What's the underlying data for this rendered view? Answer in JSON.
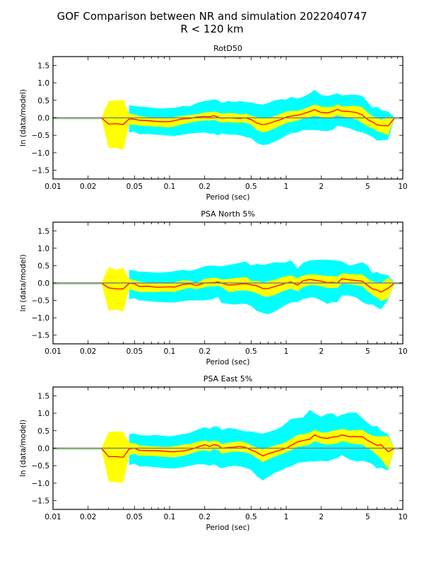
{
  "figure": {
    "title_line1": "GOF Comparison between NR and simulation 2022040747",
    "title_line2": "R < 120 km"
  },
  "colors": {
    "mean_line": "#ff0000",
    "inner_band": "#ffff00",
    "outer_band": "#00ffff",
    "zero_line": "#808080",
    "flat_band": "#90ee90"
  },
  "chart_data": [
    {
      "type": "area",
      "title": "RotD50",
      "xlabel": "Period (sec)",
      "ylabel": "ln (data/model)",
      "xscale": "log",
      "xlim": [
        0.01,
        10
      ],
      "ylim": [
        -1.75,
        1.75
      ],
      "xticks": [
        "0.01",
        "0.02",
        "0.05",
        "0.1",
        "0.2",
        "0.5",
        "1",
        "2",
        "5",
        "10"
      ],
      "yticks": [
        "1.5",
        "1.0",
        "0.5",
        "0.0",
        "−0.5",
        "−1.0",
        "−1.5"
      ],
      "grid": false,
      "period": [
        0.01,
        0.026,
        0.03,
        0.035,
        0.04,
        0.045,
        0.05,
        0.055,
        0.065,
        0.075,
        0.085,
        0.1,
        0.11,
        0.13,
        0.15,
        0.17,
        0.2,
        0.22,
        0.24,
        0.26,
        0.28,
        0.32,
        0.36,
        0.4,
        0.45,
        0.5,
        0.56,
        0.63,
        0.7,
        0.8,
        0.9,
        1.0,
        1.1,
        1.25,
        1.4,
        1.6,
        1.75,
        2.0,
        2.25,
        2.5,
        2.75,
        3.0,
        3.5,
        4.0,
        4.5,
        5.0,
        5.5,
        6.0,
        6.5,
        7.5,
        8.5,
        10.0
      ],
      "mean": [
        0.0,
        0.0,
        -0.18,
        -0.17,
        -0.19,
        -0.03,
        -0.04,
        -0.07,
        -0.08,
        -0.1,
        -0.11,
        -0.11,
        -0.08,
        -0.03,
        -0.02,
        0.02,
        0.04,
        0.03,
        0.06,
        0.02,
        -0.01,
        0.0,
        -0.01,
        -0.02,
        0.0,
        -0.05,
        -0.15,
        -0.2,
        -0.17,
        -0.1,
        -0.05,
        0.02,
        0.05,
        0.07,
        0.12,
        0.18,
        0.23,
        0.15,
        0.14,
        0.18,
        0.24,
        0.19,
        0.18,
        0.15,
        0.08,
        -0.05,
        -0.12,
        -0.2,
        -0.22,
        -0.23,
        0.0,
        0.0
      ],
      "inner_upper": [
        0.0,
        0.0,
        0.48,
        0.49,
        0.52,
        0.12,
        0.1,
        0.05,
        0.02,
        0.01,
        0.0,
        0.0,
        0.02,
        0.06,
        0.08,
        0.1,
        0.15,
        0.16,
        0.18,
        0.15,
        0.12,
        0.14,
        0.13,
        0.1,
        0.12,
        0.06,
        0.02,
        -0.02,
        0.0,
        0.05,
        0.12,
        0.18,
        0.2,
        0.2,
        0.25,
        0.32,
        0.38,
        0.32,
        0.3,
        0.32,
        0.38,
        0.33,
        0.34,
        0.34,
        0.3,
        0.15,
        0.05,
        0.0,
        -0.05,
        0.0,
        0.0,
        0.0
      ],
      "inner_lower": [
        0.0,
        0.0,
        -0.86,
        -0.86,
        -0.92,
        -0.2,
        -0.2,
        -0.22,
        -0.24,
        -0.25,
        -0.26,
        -0.27,
        -0.25,
        -0.18,
        -0.14,
        -0.1,
        -0.08,
        -0.08,
        -0.06,
        -0.1,
        -0.14,
        -0.12,
        -0.14,
        -0.14,
        -0.14,
        -0.2,
        -0.35,
        -0.42,
        -0.38,
        -0.3,
        -0.22,
        -0.15,
        -0.12,
        -0.08,
        -0.02,
        0.02,
        0.06,
        0.02,
        0.0,
        0.02,
        0.08,
        0.04,
        0.0,
        -0.05,
        -0.15,
        -0.25,
        -0.3,
        -0.38,
        -0.42,
        -0.5,
        0.0,
        0.0
      ],
      "outer_upper": [
        null,
        null,
        null,
        null,
        null,
        0.36,
        0.34,
        0.32,
        0.3,
        0.28,
        0.26,
        0.28,
        0.28,
        0.34,
        0.33,
        0.42,
        0.48,
        0.5,
        0.53,
        0.5,
        0.42,
        0.48,
        0.45,
        0.48,
        0.45,
        0.44,
        0.4,
        0.38,
        0.42,
        0.5,
        0.53,
        0.52,
        0.6,
        0.55,
        0.6,
        0.7,
        0.8,
        0.65,
        0.62,
        0.66,
        0.7,
        0.64,
        0.66,
        0.66,
        0.62,
        0.45,
        0.28,
        0.32,
        0.22,
        0.18,
        0.0,
        0.0
      ],
      "outer_lower": [
        null,
        null,
        null,
        null,
        null,
        -0.42,
        -0.4,
        -0.47,
        -0.46,
        -0.48,
        -0.49,
        -0.51,
        -0.52,
        -0.48,
        -0.45,
        -0.43,
        -0.42,
        -0.45,
        -0.45,
        -0.5,
        -0.45,
        -0.48,
        -0.48,
        -0.5,
        -0.55,
        -0.58,
        -0.72,
        -0.78,
        -0.76,
        -0.68,
        -0.6,
        -0.5,
        -0.44,
        -0.42,
        -0.35,
        -0.35,
        -0.35,
        -0.37,
        -0.38,
        -0.35,
        -0.22,
        -0.25,
        -0.3,
        -0.38,
        -0.42,
        -0.48,
        -0.55,
        -0.65,
        -0.65,
        -0.62,
        0.0,
        0.0
      ]
    },
    {
      "type": "area",
      "title": "PSA North 5%",
      "xlabel": "Period (sec)",
      "ylabel": "ln (data/model)",
      "xscale": "log",
      "xlim": [
        0.01,
        10
      ],
      "ylim": [
        -1.75,
        1.75
      ],
      "xticks": [
        "0.01",
        "0.02",
        "0.05",
        "0.1",
        "0.2",
        "0.5",
        "1",
        "2",
        "5",
        "10"
      ],
      "yticks": [
        "1.5",
        "1.0",
        "0.5",
        "0.0",
        "−0.5",
        "−1.0",
        "−1.5"
      ],
      "grid": false,
      "period": [
        0.01,
        0.026,
        0.03,
        0.035,
        0.04,
        0.045,
        0.05,
        0.055,
        0.065,
        0.075,
        0.085,
        0.1,
        0.11,
        0.13,
        0.15,
        0.17,
        0.2,
        0.22,
        0.24,
        0.26,
        0.28,
        0.32,
        0.36,
        0.4,
        0.45,
        0.5,
        0.56,
        0.63,
        0.7,
        0.8,
        0.9,
        1.0,
        1.1,
        1.25,
        1.4,
        1.6,
        1.75,
        2.0,
        2.25,
        2.5,
        2.75,
        3.0,
        3.5,
        4.0,
        4.5,
        5.0,
        5.5,
        6.0,
        6.5,
        7.5,
        8.5,
        10.0
      ],
      "mean": [
        0.0,
        0.0,
        -0.14,
        -0.17,
        -0.17,
        -0.01,
        -0.02,
        -0.1,
        -0.09,
        -0.12,
        -0.12,
        -0.11,
        -0.12,
        -0.04,
        -0.02,
        -0.07,
        0.0,
        0.01,
        0.01,
        0.03,
        0.0,
        -0.06,
        -0.05,
        -0.03,
        -0.02,
        -0.05,
        -0.08,
        -0.16,
        -0.16,
        -0.1,
        -0.05,
        0.0,
        0.03,
        -0.06,
        0.07,
        0.1,
        0.08,
        0.05,
        0.01,
        0.02,
        0.0,
        0.12,
        0.09,
        0.07,
        0.05,
        -0.07,
        -0.17,
        -0.2,
        -0.26,
        -0.15,
        0.0,
        0.0
      ],
      "inner_upper": [
        0.0,
        0.0,
        0.46,
        0.38,
        0.44,
        0.12,
        0.08,
        0.04,
        0.01,
        0.0,
        0.0,
        0.0,
        0.02,
        0.08,
        0.06,
        0.0,
        0.12,
        0.14,
        0.15,
        0.14,
        0.1,
        0.12,
        0.14,
        0.15,
        0.18,
        0.06,
        0.06,
        0.02,
        0.05,
        0.1,
        0.15,
        0.2,
        0.22,
        0.14,
        0.22,
        0.25,
        0.25,
        0.22,
        0.2,
        0.2,
        0.18,
        0.28,
        0.26,
        0.25,
        0.25,
        0.12,
        0.04,
        0.02,
        0.0,
        0.15,
        0.0,
        0.0
      ],
      "inner_lower": [
        0.0,
        0.0,
        -0.8,
        -0.76,
        -0.82,
        -0.18,
        -0.22,
        -0.26,
        -0.26,
        -0.26,
        -0.25,
        -0.25,
        -0.26,
        -0.18,
        -0.14,
        -0.18,
        -0.12,
        -0.1,
        -0.1,
        -0.08,
        -0.12,
        -0.26,
        -0.24,
        -0.22,
        -0.22,
        -0.24,
        -0.3,
        -0.38,
        -0.4,
        -0.34,
        -0.26,
        -0.2,
        -0.16,
        -0.24,
        -0.12,
        -0.06,
        -0.06,
        -0.1,
        -0.14,
        -0.14,
        -0.14,
        -0.02,
        -0.04,
        -0.06,
        -0.1,
        -0.24,
        -0.34,
        -0.42,
        -0.52,
        -0.45,
        0.0,
        0.0
      ],
      "outer_upper": [
        null,
        null,
        null,
        null,
        null,
        0.38,
        0.36,
        0.32,
        0.32,
        0.3,
        0.3,
        0.32,
        0.34,
        0.38,
        0.35,
        0.4,
        0.48,
        0.5,
        0.5,
        0.48,
        0.48,
        0.52,
        0.55,
        0.58,
        0.62,
        0.5,
        0.55,
        0.52,
        0.55,
        0.6,
        0.58,
        0.6,
        0.65,
        0.42,
        0.58,
        0.65,
        0.66,
        0.67,
        0.67,
        0.66,
        0.64,
        0.62,
        0.5,
        0.55,
        0.6,
        0.5,
        0.28,
        0.32,
        0.26,
        0.22,
        0.0,
        0.0
      ],
      "outer_lower": [
        null,
        null,
        null,
        null,
        null,
        -0.46,
        -0.44,
        -0.5,
        -0.52,
        -0.54,
        -0.55,
        -0.56,
        -0.56,
        -0.52,
        -0.5,
        -0.5,
        -0.5,
        -0.48,
        -0.45,
        -0.4,
        -0.58,
        -0.6,
        -0.62,
        -0.6,
        -0.6,
        -0.66,
        -0.8,
        -0.86,
        -0.9,
        -0.82,
        -0.72,
        -0.62,
        -0.56,
        -0.55,
        -0.46,
        -0.42,
        -0.42,
        -0.5,
        -0.6,
        -0.55,
        -0.55,
        -0.36,
        -0.36,
        -0.42,
        -0.55,
        -0.62,
        -0.62,
        -0.7,
        -0.76,
        -0.48,
        0.0,
        0.0
      ]
    },
    {
      "type": "area",
      "title": "PSA East 5%",
      "xlabel": "Period (sec)",
      "ylabel": "ln (data/model)",
      "xscale": "log",
      "xlim": [
        0.01,
        10
      ],
      "ylim": [
        -1.75,
        1.75
      ],
      "xticks": [
        "0.01",
        "0.02",
        "0.05",
        "0.1",
        "0.2",
        "0.5",
        "1",
        "2",
        "5",
        "10"
      ],
      "yticks": [
        "1.5",
        "1.0",
        "0.5",
        "0.0",
        "−0.5",
        "−1.0",
        "−1.5"
      ],
      "grid": false,
      "period": [
        0.01,
        0.026,
        0.03,
        0.035,
        0.04,
        0.045,
        0.05,
        0.055,
        0.065,
        0.075,
        0.085,
        0.1,
        0.11,
        0.13,
        0.15,
        0.17,
        0.2,
        0.22,
        0.24,
        0.26,
        0.28,
        0.32,
        0.36,
        0.4,
        0.45,
        0.5,
        0.56,
        0.63,
        0.7,
        0.8,
        0.9,
        1.0,
        1.1,
        1.25,
        1.4,
        1.6,
        1.75,
        2.0,
        2.25,
        2.5,
        2.75,
        3.0,
        3.5,
        4.0,
        4.5,
        5.0,
        5.5,
        6.0,
        6.5,
        7.5,
        8.5,
        10.0
      ],
      "mean": [
        0.0,
        0.0,
        -0.24,
        -0.24,
        -0.26,
        -0.02,
        0.0,
        -0.06,
        -0.07,
        -0.07,
        -0.08,
        -0.1,
        -0.1,
        -0.08,
        -0.04,
        0.02,
        0.1,
        0.05,
        0.1,
        0.08,
        0.0,
        0.02,
        0.03,
        0.05,
        0.02,
        -0.05,
        -0.12,
        -0.22,
        -0.16,
        -0.1,
        -0.05,
        0.0,
        0.08,
        0.18,
        0.22,
        0.26,
        0.38,
        0.3,
        0.28,
        0.32,
        0.33,
        0.38,
        0.33,
        0.33,
        0.33,
        0.22,
        0.15,
        0.08,
        0.1,
        -0.1,
        0.0,
        0.0
      ],
      "inner_upper": [
        0.0,
        0.0,
        0.46,
        0.48,
        0.47,
        0.16,
        0.14,
        0.08,
        0.06,
        0.05,
        0.04,
        0.04,
        0.06,
        0.1,
        0.12,
        0.18,
        0.22,
        0.18,
        0.22,
        0.2,
        0.12,
        0.16,
        0.18,
        0.2,
        0.16,
        0.08,
        0.02,
        -0.04,
        0.02,
        0.08,
        0.12,
        0.18,
        0.26,
        0.38,
        0.4,
        0.45,
        0.52,
        0.45,
        0.45,
        0.5,
        0.52,
        0.56,
        0.5,
        0.52,
        0.52,
        0.42,
        0.36,
        0.34,
        0.34,
        0.35,
        0.0,
        0.0
      ],
      "inner_lower": [
        0.0,
        0.0,
        -0.95,
        -0.97,
        -0.99,
        -0.2,
        -0.16,
        -0.22,
        -0.22,
        -0.22,
        -0.24,
        -0.26,
        -0.26,
        -0.22,
        -0.16,
        -0.1,
        -0.06,
        -0.1,
        -0.02,
        -0.06,
        -0.16,
        -0.12,
        -0.1,
        -0.1,
        -0.12,
        -0.18,
        -0.28,
        -0.4,
        -0.32,
        -0.24,
        -0.18,
        -0.12,
        -0.06,
        0.04,
        0.06,
        0.1,
        0.2,
        0.14,
        0.1,
        0.12,
        0.14,
        0.2,
        0.14,
        0.12,
        0.1,
        0.0,
        -0.08,
        -0.2,
        -0.3,
        -0.6,
        0.0,
        0.0
      ],
      "outer_upper": [
        null,
        null,
        null,
        null,
        null,
        0.4,
        0.42,
        0.38,
        0.36,
        0.38,
        0.36,
        0.34,
        0.36,
        0.4,
        0.44,
        0.52,
        0.6,
        0.56,
        0.62,
        0.62,
        0.52,
        0.58,
        0.56,
        0.52,
        0.48,
        0.48,
        0.44,
        0.42,
        0.46,
        0.52,
        0.6,
        0.72,
        0.84,
        0.86,
        0.88,
        1.1,
        1.0,
        0.9,
        0.98,
        1.0,
        0.9,
        0.96,
        1.02,
        1.02,
        0.86,
        0.72,
        0.62,
        0.64,
        0.5,
        0.4,
        0.0,
        0.0
      ],
      "outer_lower": [
        null,
        null,
        null,
        null,
        null,
        -0.48,
        -0.44,
        -0.52,
        -0.52,
        -0.54,
        -0.56,
        -0.58,
        -0.58,
        -0.54,
        -0.5,
        -0.46,
        -0.46,
        -0.5,
        -0.46,
        -0.52,
        -0.58,
        -0.52,
        -0.5,
        -0.52,
        -0.56,
        -0.62,
        -0.8,
        -0.92,
        -0.82,
        -0.7,
        -0.64,
        -0.56,
        -0.52,
        -0.42,
        -0.4,
        -0.38,
        -0.38,
        -0.36,
        -0.38,
        -0.32,
        -0.28,
        -0.2,
        -0.32,
        -0.38,
        -0.36,
        -0.4,
        -0.46,
        -0.58,
        -0.56,
        -0.64,
        0.0,
        0.0
      ]
    }
  ]
}
